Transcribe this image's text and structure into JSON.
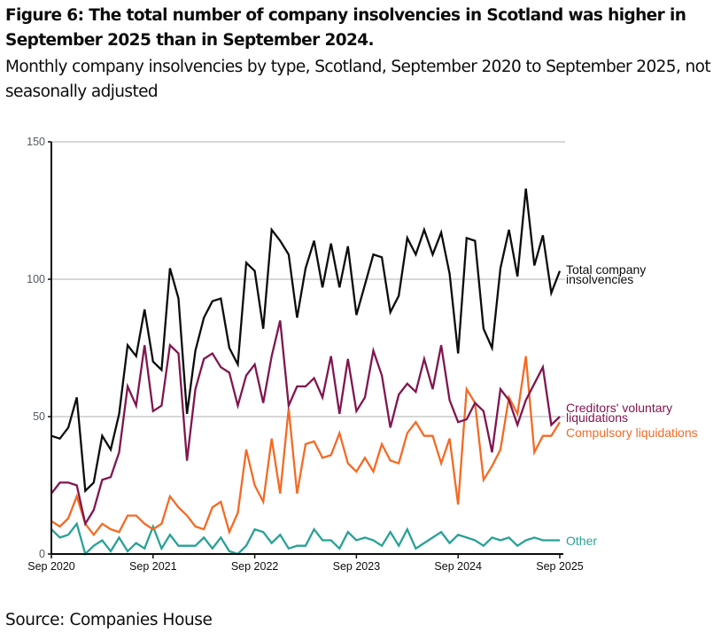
{
  "figure": {
    "title": "Figure 6: The total number of company insolvencies in Scotland was higher in September 2025 than in September 2024.",
    "subtitle": "Monthly company insolvencies by type, Scotland, September 2020 to September 2025, not seasonally adjusted",
    "source": "Source: Companies House"
  },
  "chart_data": {
    "type": "line",
    "title": "Monthly company insolvencies by type, Scotland, September 2020 to September 2025, not seasonally adjusted",
    "xlabel": "",
    "ylabel": "",
    "ylim": [
      0,
      150
    ],
    "yticks": [
      0,
      50,
      100,
      150
    ],
    "grid": true,
    "legend": "direct labels at right end of lines",
    "x_start": "Sep 2020",
    "x_end": "Sep 2025",
    "x_tick_labels": [
      "Sep 2020",
      "Sep 2021",
      "Sep 2022",
      "Sep 2023",
      "Sep 2024",
      "Sep 2025"
    ],
    "x_tick_month_index": [
      0,
      12,
      24,
      36,
      48,
      60
    ],
    "series": [
      {
        "name": "Total company insolvencies",
        "label_lines": [
          "Total company",
          "insolvencies"
        ],
        "color": "#0b0c0c",
        "values": [
          43,
          42,
          46,
          57,
          23,
          26,
          43,
          38,
          51,
          76,
          72,
          89,
          70,
          67,
          104,
          93,
          51,
          74,
          86,
          92,
          93,
          75,
          69,
          106,
          103,
          82,
          118,
          114,
          109,
          86,
          104,
          114,
          97,
          113,
          97,
          112,
          87,
          98,
          109,
          108,
          88,
          94,
          115,
          109,
          118,
          109,
          117,
          102,
          73,
          115,
          114,
          82,
          75,
          104,
          118,
          101,
          133,
          105,
          116,
          95,
          103
        ]
      },
      {
        "name": "Creditors' voluntary liquidations",
        "label_lines": [
          "Creditors' voluntary",
          "liquidations"
        ],
        "color": "#801650",
        "values": [
          22,
          26,
          26,
          25,
          11,
          16,
          27,
          28,
          37,
          61,
          54,
          76,
          52,
          54,
          76,
          73,
          34,
          60,
          71,
          73,
          68,
          66,
          54,
          65,
          69,
          55,
          72,
          85,
          54,
          61,
          61,
          64,
          57,
          72,
          51,
          71,
          52,
          57,
          74,
          65,
          46,
          58,
          62,
          59,
          71,
          60,
          76,
          56,
          48,
          49,
          55,
          52,
          37,
          60,
          56,
          47,
          56,
          62,
          68,
          47,
          50
        ]
      },
      {
        "name": "Compulsory liquidations",
        "label_lines": [
          "Compulsory liquidations"
        ],
        "color": "#f46a25",
        "values": [
          12,
          10,
          13,
          21,
          11,
          7,
          11,
          9,
          8,
          14,
          14,
          11,
          9,
          11,
          21,
          17,
          14,
          10,
          9,
          17,
          19,
          8,
          15,
          38,
          25,
          19,
          42,
          22,
          53,
          22,
          40,
          41,
          35,
          36,
          44,
          33,
          30,
          35,
          30,
          40,
          34,
          33,
          44,
          48,
          43,
          43,
          33,
          42,
          18,
          60,
          55,
          27,
          32,
          38,
          57,
          51,
          72,
          37,
          43,
          43,
          48
        ]
      },
      {
        "name": "Other",
        "label_lines": [
          "Other"
        ],
        "color": "#28a197",
        "values": [
          9,
          6,
          7,
          11,
          0,
          3,
          5,
          1,
          6,
          1,
          4,
          2,
          10,
          2,
          7,
          3,
          3,
          3,
          6,
          2,
          6,
          1,
          0,
          3,
          9,
          8,
          4,
          7,
          2,
          3,
          3,
          9,
          5,
          5,
          2,
          8,
          5,
          6,
          5,
          3,
          8,
          3,
          9,
          2,
          4,
          6,
          8,
          4,
          7,
          6,
          5,
          3,
          6,
          5,
          6,
          3,
          5,
          6,
          5,
          5,
          5
        ]
      }
    ]
  }
}
